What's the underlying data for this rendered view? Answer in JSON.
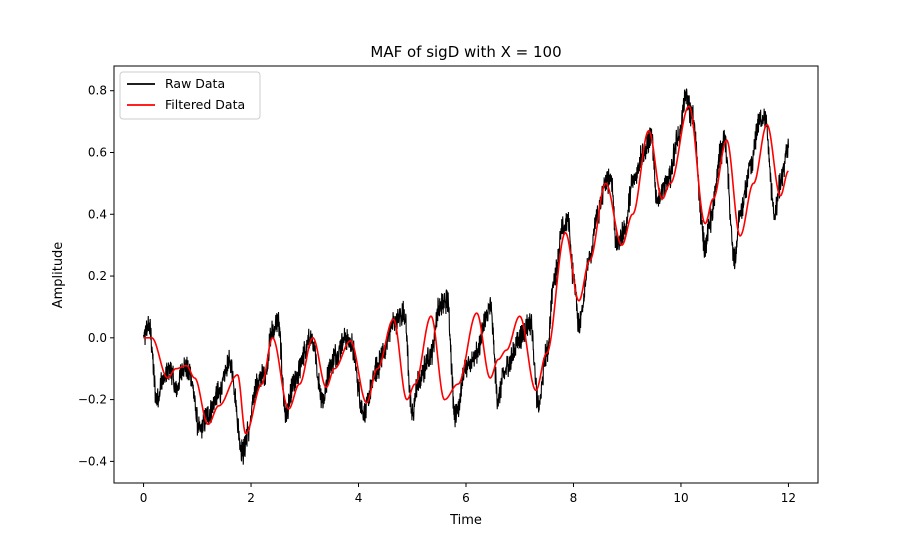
{
  "chart_data": {
    "type": "line",
    "title": "MAF of sigD with X = 100",
    "xlabel": "Time",
    "ylabel": "Amplitude",
    "xlim": [
      -0.55,
      12.55
    ],
    "ylim": [
      -0.47,
      0.88
    ],
    "xticks": [
      0,
      2,
      4,
      6,
      8,
      10,
      12
    ],
    "yticks": [
      -0.4,
      -0.2,
      0.0,
      0.2,
      0.4,
      0.6,
      0.8
    ],
    "xtick_labels": [
      "0",
      "2",
      "4",
      "6",
      "8",
      "10",
      "12"
    ],
    "ytick_labels": [
      "−0.4",
      "−0.2",
      "0.0",
      "0.2",
      "0.4",
      "0.6",
      "0.8"
    ],
    "grid": false,
    "legend_position": "top-left",
    "series": [
      {
        "name": "Raw Data",
        "color": "#000000",
        "noise_amplitude": 0.03,
        "x": [
          0,
          0.1,
          0.25,
          0.35,
          0.5,
          0.6,
          0.75,
          0.85,
          1.05,
          1.2,
          1.4,
          1.6,
          1.85,
          1.95,
          2.1,
          2.25,
          2.4,
          2.5,
          2.65,
          2.8,
          3.0,
          3.1,
          3.35,
          3.45,
          3.6,
          3.75,
          3.85,
          4.1,
          4.35,
          4.45,
          4.65,
          4.85,
          5.0,
          5.1,
          5.35,
          5.5,
          5.65,
          5.8,
          6.0,
          6.2,
          6.35,
          6.45,
          6.6,
          6.7,
          6.8,
          7.0,
          7.2,
          7.35,
          7.5,
          7.65,
          7.8,
          7.9,
          8.0,
          8.1,
          8.3,
          8.45,
          8.6,
          8.7,
          8.8,
          8.95,
          9.1,
          9.3,
          9.45,
          9.55,
          9.75,
          9.95,
          10.1,
          10.2,
          10.45,
          10.55,
          10.75,
          10.8,
          11.0,
          11.1,
          11.3,
          11.45,
          11.55,
          11.75,
          11.85,
          12.0
        ],
        "y": [
          0.0,
          0.04,
          -0.2,
          -0.14,
          -0.1,
          -0.17,
          -0.09,
          -0.11,
          -0.3,
          -0.25,
          -0.18,
          -0.08,
          -0.37,
          -0.3,
          -0.15,
          -0.12,
          0.02,
          0.05,
          -0.25,
          -0.15,
          -0.05,
          0.0,
          -0.2,
          -0.1,
          -0.05,
          0.0,
          -0.02,
          -0.24,
          -0.1,
          -0.05,
          0.05,
          0.08,
          -0.25,
          -0.15,
          -0.05,
          0.1,
          0.12,
          -0.25,
          -0.1,
          -0.05,
          0.05,
          0.1,
          -0.2,
          -0.12,
          -0.08,
          0.0,
          0.05,
          -0.22,
          -0.05,
          0.2,
          0.35,
          0.38,
          0.2,
          0.05,
          0.25,
          0.4,
          0.5,
          0.52,
          0.3,
          0.35,
          0.5,
          0.6,
          0.65,
          0.45,
          0.5,
          0.65,
          0.78,
          0.72,
          0.3,
          0.38,
          0.6,
          0.65,
          0.25,
          0.4,
          0.55,
          0.7,
          0.72,
          0.4,
          0.5,
          0.62
        ]
      },
      {
        "name": "Filtered Data",
        "color": "#ff0000",
        "x": [
          0,
          0.15,
          0.45,
          0.6,
          0.8,
          0.95,
          1.2,
          1.4,
          1.75,
          1.9,
          2.2,
          2.4,
          2.7,
          2.9,
          3.15,
          3.4,
          3.55,
          3.85,
          4.15,
          4.35,
          4.65,
          4.9,
          5.05,
          5.35,
          5.6,
          5.85,
          6.2,
          6.45,
          6.6,
          6.75,
          7.0,
          7.3,
          7.5,
          7.85,
          8.1,
          8.3,
          8.6,
          8.9,
          9.1,
          9.4,
          9.65,
          9.8,
          10.15,
          10.45,
          10.6,
          10.85,
          11.1,
          11.35,
          11.6,
          11.85,
          12.0
        ],
        "y": [
          0.0,
          0.0,
          -0.13,
          -0.1,
          -0.09,
          -0.13,
          -0.28,
          -0.22,
          -0.12,
          -0.31,
          -0.15,
          0.0,
          -0.23,
          -0.15,
          0.0,
          -0.16,
          -0.1,
          -0.01,
          -0.21,
          -0.1,
          0.06,
          -0.2,
          -0.15,
          0.07,
          -0.2,
          -0.15,
          0.08,
          -0.13,
          -0.07,
          -0.04,
          0.07,
          -0.17,
          -0.05,
          0.34,
          0.12,
          0.25,
          0.5,
          0.3,
          0.4,
          0.67,
          0.45,
          0.5,
          0.75,
          0.37,
          0.45,
          0.64,
          0.33,
          0.5,
          0.69,
          0.46,
          0.54
        ]
      }
    ]
  }
}
